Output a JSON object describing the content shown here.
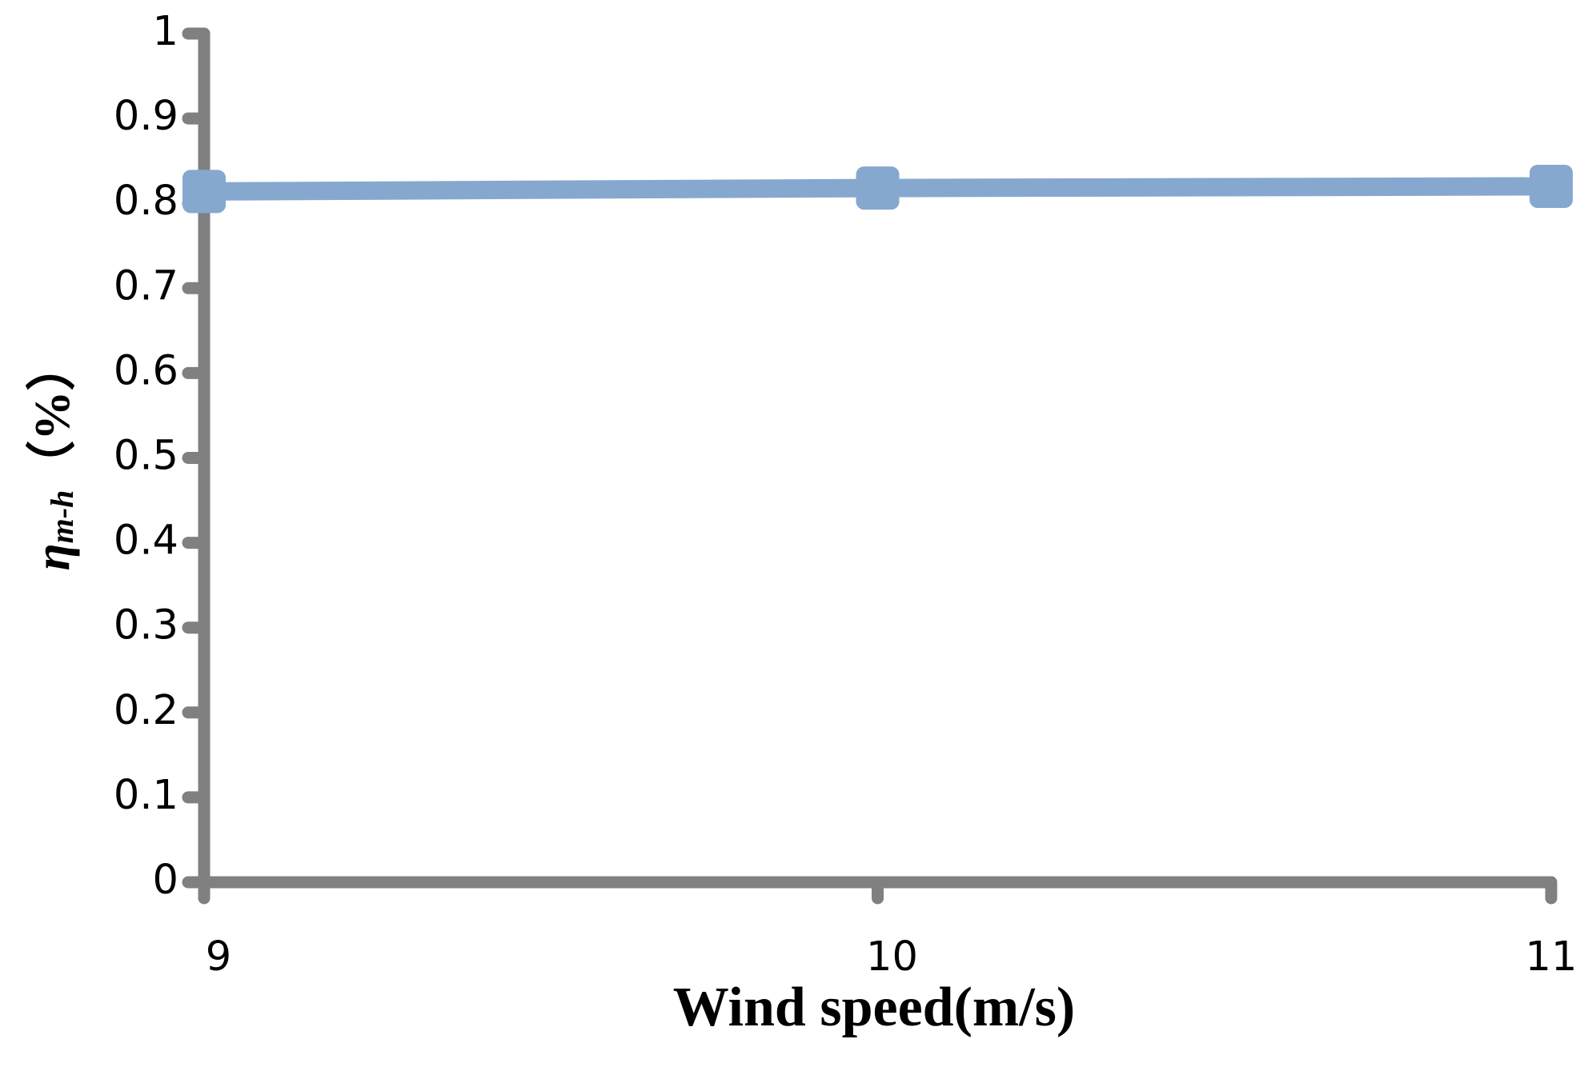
{
  "chart_data": {
    "type": "line",
    "x_label": "Wind speed(m/s)",
    "y_label": {
      "symbol": "η",
      "subscript": "m-h",
      "unit": "（%）"
    },
    "x": [
      9,
      10,
      11
    ],
    "series": [
      {
        "color": "#86a8cf",
        "values": [
          0.814,
          0.818,
          0.82
        ]
      }
    ],
    "xlim": [
      9,
      11
    ],
    "xticks": [
      9,
      10,
      11
    ],
    "ylim": [
      0,
      1
    ],
    "yticks": [
      0,
      0.1,
      0.2,
      0.3,
      0.4,
      0.5,
      0.6,
      0.7,
      0.8,
      0.9,
      1
    ],
    "grid": false
  }
}
